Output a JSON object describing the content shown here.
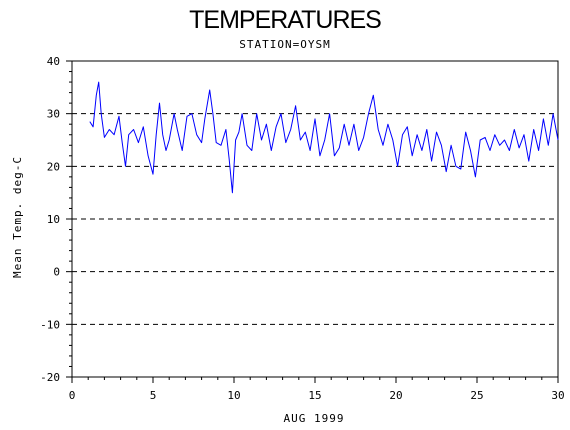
{
  "chart_data": {
    "type": "line",
    "title": "TEMPERATURES",
    "subtitle": "STATION=OYSM",
    "xlabel": "AUG 1999",
    "ylabel": "Mean Temp. deg-C",
    "xlim": [
      0,
      30
    ],
    "ylim": [
      -20,
      40
    ],
    "x_ticks": [
      0,
      5,
      10,
      15,
      20,
      25,
      30
    ],
    "y_ticks": [
      -20,
      -10,
      0,
      10,
      20,
      30,
      40
    ],
    "grid": "horizontal dashed at y ticks",
    "series": [
      {
        "color": "#0000ff",
        "x": [
          1.1,
          1.3,
          1.5,
          1.65,
          1.8,
          2.0,
          2.3,
          2.6,
          2.9,
          3.1,
          3.3,
          3.5,
          3.8,
          4.1,
          4.4,
          4.7,
          5.0,
          5.2,
          5.4,
          5.6,
          5.8,
          6.0,
          6.3,
          6.5,
          6.8,
          7.1,
          7.4,
          7.7,
          8.0,
          8.2,
          8.5,
          8.7,
          8.9,
          9.2,
          9.5,
          9.7,
          9.9,
          10.1,
          10.3,
          10.5,
          10.8,
          11.1,
          11.4,
          11.7,
          12.0,
          12.3,
          12.6,
          12.9,
          13.2,
          13.5,
          13.8,
          14.1,
          14.4,
          14.7,
          15.0,
          15.3,
          15.6,
          15.9,
          16.2,
          16.5,
          16.8,
          17.1,
          17.4,
          17.7,
          18.0,
          18.3,
          18.6,
          18.9,
          19.2,
          19.5,
          19.8,
          20.1,
          20.4,
          20.7,
          21.0,
          21.3,
          21.6,
          21.9,
          22.2,
          22.5,
          22.8,
          23.1,
          23.4,
          23.7,
          24.0,
          24.3,
          24.6,
          24.9,
          25.2,
          25.5,
          25.8,
          26.1,
          26.4,
          26.7,
          27.0,
          27.3,
          27.6,
          27.9,
          28.2,
          28.5,
          28.8,
          29.1,
          29.4,
          29.7,
          30.0
        ],
        "y": [
          28.5,
          27.5,
          33.5,
          36,
          30,
          25.5,
          27,
          26,
          29.5,
          24.5,
          20,
          26,
          27,
          24.5,
          27.5,
          22,
          18.5,
          26,
          32,
          26,
          23,
          25,
          30,
          27,
          23,
          29.5,
          30,
          26,
          24.5,
          29,
          34.5,
          30,
          24.5,
          24,
          27,
          21.5,
          15,
          25,
          26.5,
          30,
          24,
          23,
          30,
          25,
          28,
          23,
          27.5,
          30,
          24.5,
          27,
          31.5,
          25,
          26.5,
          23,
          29,
          22,
          25,
          30,
          22,
          23.5,
          28,
          24,
          28,
          23,
          25.5,
          30,
          33.5,
          27,
          24,
          28,
          25,
          20,
          26,
          27.5,
          22,
          26,
          23,
          27,
          21,
          26.5,
          24,
          19,
          24,
          20,
          19.5,
          26.5,
          23,
          18,
          25,
          25.5,
          23,
          26,
          24,
          25,
          23,
          27,
          23.5,
          26,
          21,
          27,
          23,
          29,
          24,
          30,
          25
        ]
      }
    ]
  }
}
